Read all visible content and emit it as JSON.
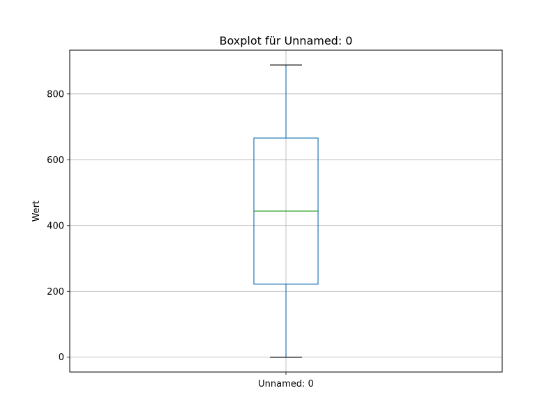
{
  "chart_data": {
    "type": "box",
    "title": "Boxplot für Unnamed: 0",
    "xlabel": "",
    "ylabel": "Wert",
    "categories": [
      "Unnamed: 0"
    ],
    "boxes": [
      {
        "category": "Unnamed: 0",
        "whisker_low": 0,
        "q1": 222,
        "median": 444,
        "q3": 666,
        "whisker_high": 888
      }
    ],
    "ylim": [
      -45,
      933
    ],
    "yticks": [
      0,
      200,
      400,
      600,
      800
    ],
    "ytick_labels": [
      "0",
      "200",
      "400",
      "600",
      "800"
    ],
    "grid": true,
    "colors": {
      "box": "#1f77b4",
      "median": "#2ca02c",
      "caps": "#000000",
      "grid": "#b0b0b0"
    }
  }
}
